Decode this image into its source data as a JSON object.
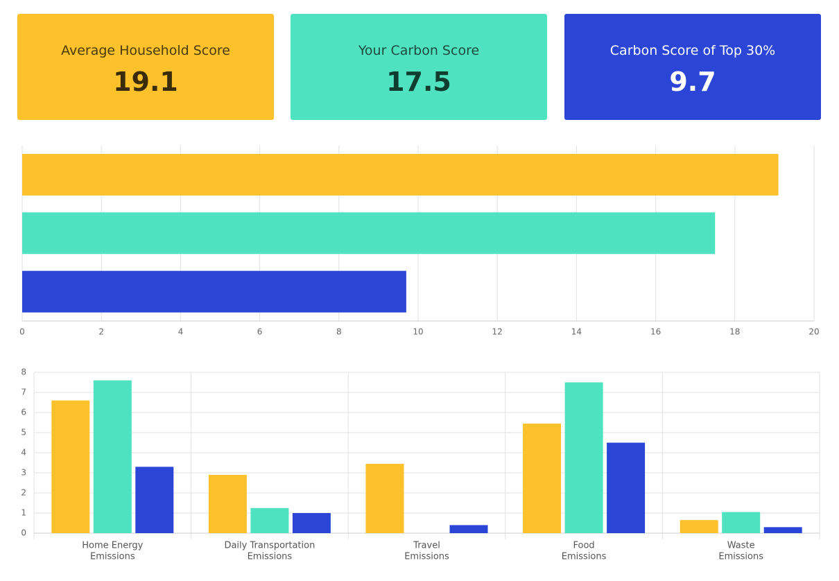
{
  "cards": [
    {
      "title": "Average Household Score",
      "value": "19.1",
      "color": "#fdc12b"
    },
    {
      "title": "Your Carbon Score",
      "value": "17.5",
      "color": "#4fe2c1"
    },
    {
      "title": "Carbon Score of Top 30%",
      "value": "9.7",
      "color": "#2b46d6"
    }
  ],
  "chart_data": [
    {
      "type": "hbar",
      "categories": [
        null,
        null,
        null
      ],
      "values": [
        19.1,
        17.5,
        9.7
      ],
      "colors": [
        "#fdc12b",
        "#4fe2c1",
        "#2b46d6"
      ],
      "xlim": [
        0,
        20
      ],
      "xticks": [
        0,
        2,
        4,
        6,
        8,
        10,
        12,
        14,
        16,
        18,
        20
      ],
      "grid": true
    },
    {
      "type": "bar",
      "categories": [
        [
          "Home Energy",
          "Emissions"
        ],
        [
          "Daily Transportation",
          "Emissions"
        ],
        [
          "Travel",
          "Emissions"
        ],
        [
          "Food",
          "Emissions"
        ],
        [
          "Waste",
          "Emissions"
        ]
      ],
      "series": [
        {
          "color": "#fdc12b",
          "values": [
            6.6,
            2.9,
            3.45,
            5.45,
            0.65
          ]
        },
        {
          "color": "#4fe2c1",
          "values": [
            7.6,
            1.25,
            0,
            7.5,
            1.05
          ]
        },
        {
          "color": "#2b46d6",
          "values": [
            3.3,
            1.0,
            0.4,
            4.5,
            0.3
          ]
        }
      ],
      "ylim": [
        0,
        8
      ],
      "yticks": [
        0,
        1,
        2,
        3,
        4,
        5,
        6,
        7,
        8
      ],
      "grid": true
    }
  ]
}
